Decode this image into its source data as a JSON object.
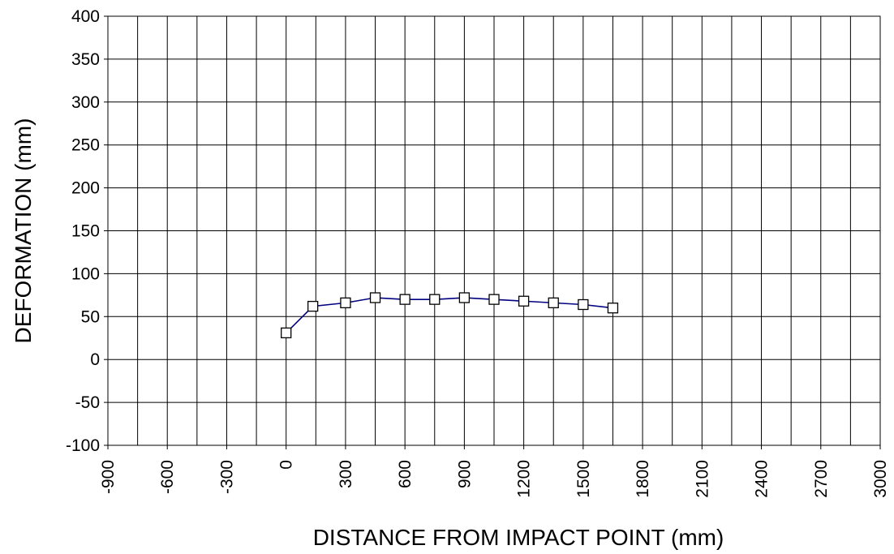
{
  "chart_data": {
    "type": "line",
    "title": "",
    "xlabel": "DISTANCE FROM IMPACT POINT (mm)",
    "ylabel": "DEFORMATION (mm)",
    "xlim": [
      -900,
      3000
    ],
    "ylim": [
      -100,
      400
    ],
    "x_ticks": [
      "-900",
      "-600",
      "-300",
      "0",
      "300",
      "600",
      "900",
      "1200",
      "1500",
      "1800",
      "2100",
      "2400",
      "2700",
      "3000"
    ],
    "y_ticks": [
      "400",
      "350",
      "300",
      "250",
      "200",
      "150",
      "100",
      "50",
      "0",
      "-50",
      "-100"
    ],
    "grid": true,
    "x_minor_step": 150,
    "series": [
      {
        "marker": "square",
        "line_color": "#000080",
        "x": [
          0,
          135,
          300,
          450,
          600,
          750,
          900,
          1050,
          1200,
          1350,
          1500,
          1650
        ],
        "y": [
          31,
          62,
          66,
          72,
          70,
          70,
          72,
          70,
          68,
          66,
          64,
          60
        ]
      }
    ]
  }
}
